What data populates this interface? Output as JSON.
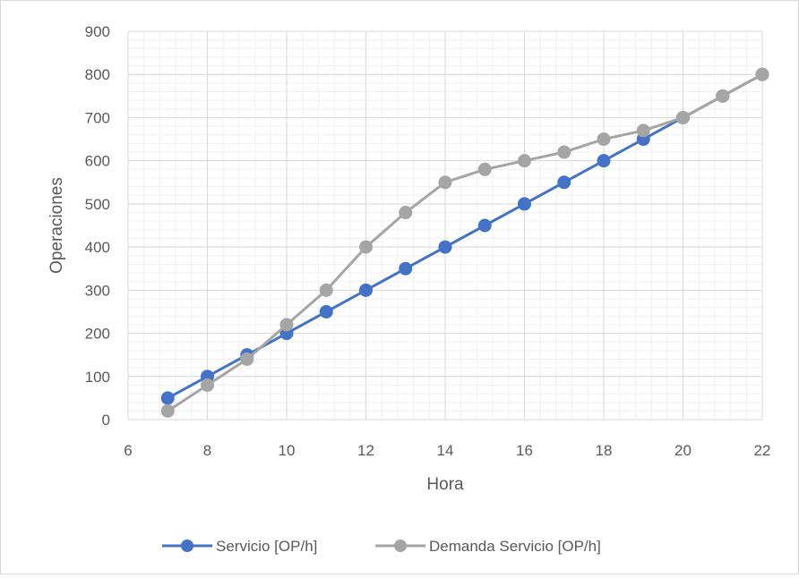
{
  "chart_data": {
    "type": "line",
    "title": "",
    "xlabel": "Hora",
    "ylabel": "Operaciones",
    "xlim": [
      6,
      22
    ],
    "ylim": [
      0,
      900
    ],
    "x_ticks": [
      6,
      8,
      10,
      12,
      14,
      16,
      18,
      20,
      22
    ],
    "y_ticks": [
      0,
      100,
      200,
      300,
      400,
      500,
      600,
      700,
      800,
      900
    ],
    "grid": true,
    "legend_position": "bottom",
    "series": [
      {
        "name": "Servicio [OP/h]",
        "color": "#4472c4",
        "x": [
          7,
          8,
          9,
          10,
          11,
          12,
          13,
          14,
          15,
          16,
          17,
          18,
          19,
          20,
          21,
          22
        ],
        "y": [
          50,
          100,
          150,
          200,
          250,
          300,
          350,
          400,
          450,
          500,
          550,
          600,
          650,
          700,
          750,
          800
        ]
      },
      {
        "name": "Demanda Servicio [OP/h]",
        "color": "#a5a5a5",
        "x": [
          7,
          8,
          9,
          10,
          11,
          12,
          13,
          14,
          15,
          16,
          17,
          18,
          19,
          20,
          21,
          22
        ],
        "y": [
          20,
          80,
          140,
          220,
          300,
          400,
          480,
          550,
          580,
          600,
          620,
          650,
          670,
          700,
          750,
          800
        ]
      }
    ]
  }
}
